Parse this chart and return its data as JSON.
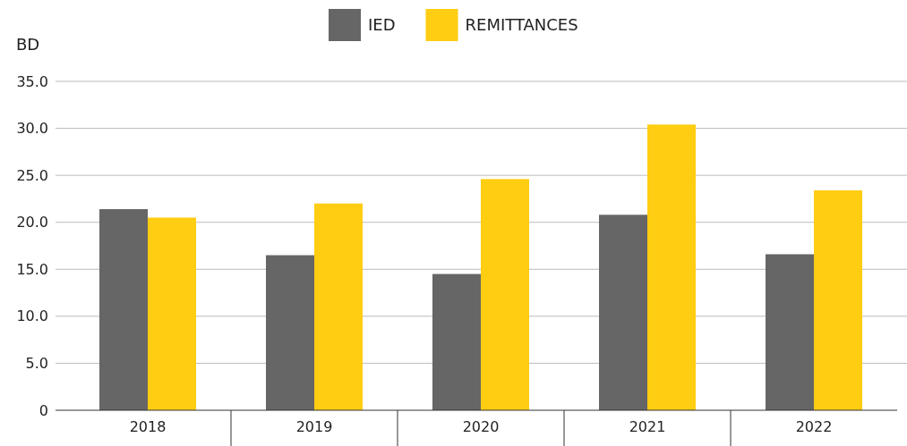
{
  "chart_data": {
    "type": "bar",
    "ylabel": "BD",
    "categories": [
      "2018",
      "2019",
      "2020",
      "2021",
      "2022"
    ],
    "series": [
      {
        "name": "IED",
        "color": "#666666",
        "values": [
          21.4,
          16.5,
          14.5,
          20.8,
          16.6
        ]
      },
      {
        "name": "REMITTANCES",
        "color": "#ffcd11",
        "values": [
          20.5,
          22.0,
          24.6,
          30.4,
          23.4
        ]
      }
    ],
    "ylim": [
      0,
      35
    ],
    "yticks": [
      {
        "value": 0,
        "label": "0"
      },
      {
        "value": 5,
        "label": "5.0"
      },
      {
        "value": 10,
        "label": "10.0"
      },
      {
        "value": 15,
        "label": "15.0"
      },
      {
        "value": 20,
        "label": "20.0"
      },
      {
        "value": 25,
        "label": "25.0"
      },
      {
        "value": 30,
        "label": "30.0"
      },
      {
        "value": 35,
        "label": "35.0"
      }
    ],
    "grid": "y",
    "legend": "top"
  }
}
